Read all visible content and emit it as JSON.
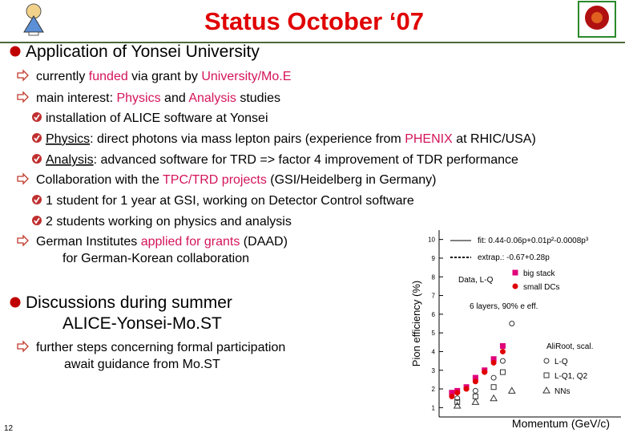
{
  "header": {
    "title": "Status October ‘07"
  },
  "sections": [
    {
      "heading": [
        [
          {
            "text": "Application of Yonsei University"
          }
        ]
      ],
      "items": [
        {
          "lines": [
            [
              {
                "text": "currently "
              },
              {
                "text": "funded",
                "highlight": true
              },
              {
                "text": " via grant by "
              },
              {
                "text": "University/Mo.E",
                "highlight": true
              }
            ]
          ]
        },
        {
          "lines": [
            [
              {
                "text": "main interest: "
              },
              {
                "text": "Physics",
                "highlight": true
              },
              {
                "text": " and "
              },
              {
                "text": "Analysis",
                "highlight": true
              },
              {
                "text": " studies"
              }
            ]
          ]
        },
        {
          "sub": true,
          "lines": [
            [
              {
                "text": "installation of ALICE software at Yonsei"
              }
            ]
          ]
        },
        {
          "sub": true,
          "lines": [
            [
              {
                "text": "Physics",
                "underline": true
              },
              {
                "text": ": direct photons via mass lepton pairs (experience from "
              },
              {
                "text": "PHENIX",
                "highlight": true
              },
              {
                "text": " at RHIC/USA)"
              }
            ]
          ]
        },
        {
          "sub": true,
          "lines": [
            [
              {
                "text": "Analysis",
                "underline": true
              },
              {
                "text": ": advanced software for TRD => factor 4 improvement of TDR performance"
              }
            ]
          ]
        },
        {
          "lines": [
            [
              {
                "text": "Collaboration with the "
              },
              {
                "text": "TPC/TRD projects",
                "highlight": true
              },
              {
                "text": " (GSI/Heidelberg in Germany)"
              }
            ]
          ]
        },
        {
          "sub": true,
          "lines": [
            [
              {
                "text": "1 student for 1 year at GSI, working on Detector Control software"
              }
            ]
          ]
        },
        {
          "sub": true,
          "lines": [
            [
              {
                "text": "2 students working on physics and analysis"
              }
            ]
          ]
        },
        {
          "lines": [
            [
              {
                "text": "German Institutes "
              },
              {
                "text": "applied for grants",
                "highlight": true
              },
              {
                "text": " (DAAD)"
              }
            ],
            [
              {
                "text": "for German-Korean collaboration"
              }
            ]
          ]
        }
      ]
    },
    {
      "heading": [
        [
          {
            "text": "Discussions during summer"
          }
        ],
        [
          {
            "text": "ALICE-Yonsei-Mo.ST"
          }
        ]
      ],
      "items": [
        {
          "lines": [
            [
              {
                "text": "further steps concerning formal participation"
              }
            ],
            [
              {
                "text": "await guidance from Mo.ST"
              }
            ]
          ]
        }
      ]
    }
  ],
  "figure": {
    "type": "scatter",
    "ylabel": "Pion efficiency (%)",
    "xlabel": "Momentum (GeV/c)",
    "xlim": [
      0,
      10
    ],
    "ylim": [
      0.5,
      10.5
    ],
    "yticks": [
      1,
      2,
      3,
      4,
      5,
      6,
      7,
      8,
      9,
      10
    ],
    "fit_label": "fit: 0.44-0.06p+0.01p²-0.0008p³",
    "extrap_label": "extrap.: -0.67+0.28p",
    "data_label": "Data, L-Q",
    "note": "6 layers, 90% e eff.",
    "sim_label": "AliRoot, scal.",
    "series": [
      {
        "name": "big stack",
        "marker": "square",
        "filled": true,
        "color": "#e0007a",
        "x": [
          0.7,
          1,
          1.5,
          2,
          2.5,
          3,
          3.5
        ],
        "values": [
          1.8,
          1.9,
          2.1,
          2.6,
          3.0,
          3.6,
          4.3
        ]
      },
      {
        "name": "small DCs",
        "marker": "circle",
        "filled": true,
        "color": "#e00000",
        "x": [
          0.7,
          1,
          1.5,
          2,
          2.5,
          3,
          3.5
        ],
        "values": [
          1.6,
          1.8,
          2.0,
          2.4,
          2.9,
          3.4,
          4.0
        ]
      },
      {
        "name": "L-Q",
        "marker": "circle",
        "filled": false,
        "color": "#333333",
        "x": [
          1,
          2,
          3,
          3.5,
          4
        ],
        "values": [
          1.5,
          1.9,
          2.6,
          3.5,
          5.5
        ]
      },
      {
        "name": "L-Q1, Q2",
        "marker": "square",
        "filled": false,
        "color": "#333333",
        "x": [
          1,
          2,
          3,
          3.5
        ],
        "values": [
          1.3,
          1.6,
          2.1,
          2.9
        ]
      },
      {
        "name": "NNs",
        "marker": "triangle",
        "filled": false,
        "color": "#333333",
        "x": [
          1,
          2,
          3,
          4
        ],
        "values": [
          1.1,
          1.3,
          1.5,
          1.9
        ]
      }
    ]
  },
  "footer": {
    "page": "12"
  }
}
